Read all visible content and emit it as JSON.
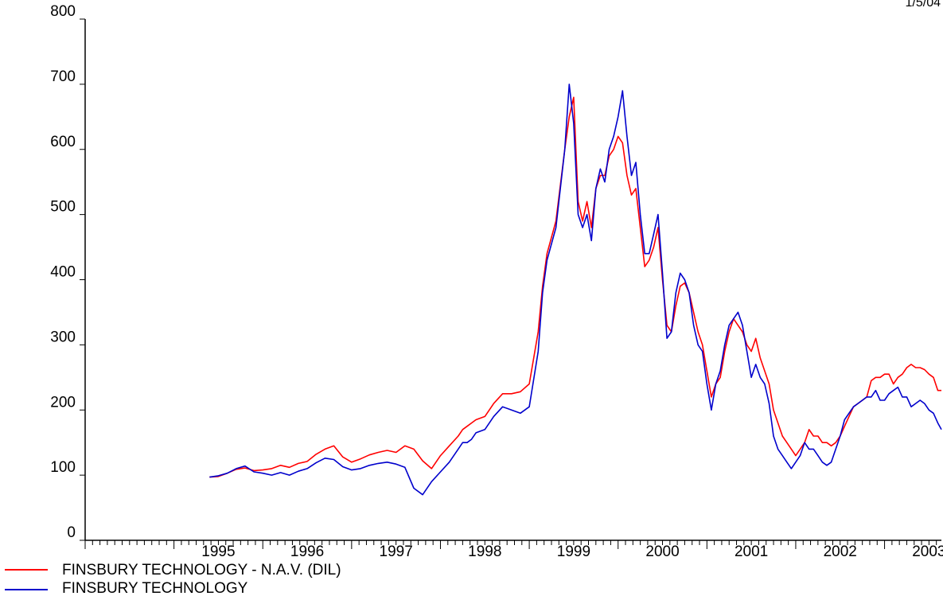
{
  "header": {
    "date_label": "1/5/04"
  },
  "chart_data": {
    "type": "line",
    "y_ticks": [
      "0",
      "100",
      "200",
      "300",
      "400",
      "500",
      "600",
      "700",
      "800"
    ],
    "ylim": [
      0,
      800
    ],
    "x_ticks": [
      "1995",
      "1996",
      "1997",
      "1998",
      "1999",
      "2000",
      "2001",
      "2002",
      "2003"
    ],
    "xlim": [
      1994.0,
      2003.64
    ],
    "grid": false,
    "legend_position": "bottom-left",
    "series": [
      {
        "name": "FINSBURY TECHNOLOGY - N.A.V. (DIL)",
        "color": "#ff0000",
        "x": [
          1995.4,
          1995.5,
          1995.6,
          1995.7,
          1995.8,
          1995.9,
          1996.0,
          1996.1,
          1996.2,
          1996.3,
          1996.4,
          1996.5,
          1996.6,
          1996.7,
          1996.8,
          1996.9,
          1997.0,
          1997.1,
          1997.2,
          1997.3,
          1997.4,
          1997.5,
          1997.6,
          1997.7,
          1997.8,
          1997.9,
          1998.0,
          1998.1,
          1998.2,
          1998.25,
          1998.3,
          1998.35,
          1998.4,
          1998.5,
          1998.6,
          1998.7,
          1998.8,
          1998.9,
          1999.0,
          1999.1,
          1999.15,
          1999.2,
          1999.3,
          1999.4,
          1999.45,
          1999.5,
          1999.55,
          1999.6,
          1999.65,
          1999.7,
          1999.75,
          1999.8,
          1999.85,
          1999.9,
          1999.95,
          2000.0,
          2000.05,
          2000.1,
          2000.15,
          2000.2,
          2000.25,
          2000.3,
          2000.35,
          2000.4,
          2000.45,
          2000.5,
          2000.55,
          2000.6,
          2000.65,
          2000.7,
          2000.75,
          2000.8,
          2000.85,
          2000.9,
          2000.95,
          2001.0,
          2001.05,
          2001.1,
          2001.15,
          2001.2,
          2001.25,
          2001.3,
          2001.35,
          2001.4,
          2001.45,
          2001.5,
          2001.55,
          2001.6,
          2001.65,
          2001.7,
          2001.75,
          2001.8,
          2001.85,
          2001.9,
          2001.95,
          2002.0,
          2002.05,
          2002.1,
          2002.15,
          2002.2,
          2002.25,
          2002.3,
          2002.35,
          2002.4,
          2002.45,
          2002.5,
          2002.55,
          2002.6,
          2002.65,
          2002.7,
          2002.75,
          2002.8,
          2002.85,
          2002.9,
          2002.95,
          2003.0,
          2003.05,
          2003.1,
          2003.15,
          2003.2,
          2003.25,
          2003.3,
          2003.35,
          2003.4,
          2003.45,
          2003.5,
          2003.55,
          2003.6,
          2003.64
        ],
        "y": [
          97,
          98,
          103,
          109,
          111,
          107,
          108,
          110,
          115,
          112,
          118,
          121,
          132,
          140,
          145,
          128,
          120,
          125,
          131,
          135,
          138,
          135,
          145,
          140,
          122,
          110,
          130,
          145,
          160,
          170,
          175,
          180,
          185,
          190,
          210,
          225,
          225,
          228,
          240,
          320,
          390,
          440,
          490,
          600,
          650,
          680,
          520,
          490,
          520,
          480,
          540,
          560,
          560,
          590,
          600,
          620,
          610,
          560,
          530,
          540,
          480,
          420,
          430,
          450,
          480,
          400,
          330,
          320,
          360,
          390,
          395,
          380,
          350,
          320,
          300,
          260,
          220,
          240,
          250,
          290,
          320,
          340,
          330,
          320,
          300,
          290,
          310,
          280,
          260,
          240,
          200,
          180,
          160,
          150,
          140,
          130,
          140,
          150,
          170,
          160,
          160,
          150,
          150,
          145,
          150,
          160,
          175,
          190,
          205,
          210,
          215,
          220,
          245,
          250,
          250,
          255,
          255,
          240,
          250,
          255,
          265,
          270,
          265,
          265,
          262,
          255,
          250,
          230,
          230
        ]
      },
      {
        "name": "FINSBURY TECHNOLOGY",
        "color": "#0000cc",
        "x": [
          1995.4,
          1995.5,
          1995.6,
          1995.7,
          1995.8,
          1995.9,
          1996.0,
          1996.1,
          1996.2,
          1996.3,
          1996.4,
          1996.5,
          1996.6,
          1996.7,
          1996.8,
          1996.9,
          1997.0,
          1997.1,
          1997.2,
          1997.3,
          1997.4,
          1997.5,
          1997.6,
          1997.7,
          1997.8,
          1997.9,
          1998.0,
          1998.1,
          1998.2,
          1998.25,
          1998.3,
          1998.35,
          1998.4,
          1998.5,
          1998.6,
          1998.7,
          1998.8,
          1998.9,
          1999.0,
          1999.1,
          1999.15,
          1999.2,
          1999.3,
          1999.4,
          1999.45,
          1999.5,
          1999.55,
          1999.6,
          1999.65,
          1999.7,
          1999.75,
          1999.8,
          1999.85,
          1999.9,
          1999.95,
          2000.0,
          2000.05,
          2000.1,
          2000.15,
          2000.2,
          2000.25,
          2000.3,
          2000.35,
          2000.4,
          2000.45,
          2000.5,
          2000.55,
          2000.6,
          2000.65,
          2000.7,
          2000.75,
          2000.8,
          2000.85,
          2000.9,
          2000.95,
          2001.0,
          2001.05,
          2001.1,
          2001.15,
          2001.2,
          2001.25,
          2001.3,
          2001.35,
          2001.4,
          2001.45,
          2001.5,
          2001.55,
          2001.6,
          2001.65,
          2001.7,
          2001.75,
          2001.8,
          2001.85,
          2001.9,
          2001.95,
          2002.0,
          2002.05,
          2002.1,
          2002.15,
          2002.2,
          2002.25,
          2002.3,
          2002.35,
          2002.4,
          2002.45,
          2002.5,
          2002.55,
          2002.6,
          2002.65,
          2002.7,
          2002.75,
          2002.8,
          2002.85,
          2002.9,
          2002.95,
          2003.0,
          2003.05,
          2003.1,
          2003.15,
          2003.2,
          2003.25,
          2003.3,
          2003.35,
          2003.4,
          2003.45,
          2003.5,
          2003.55,
          2003.6,
          2003.64
        ],
        "y": [
          97,
          99,
          103,
          110,
          114,
          105,
          103,
          100,
          104,
          100,
          106,
          110,
          119,
          126,
          124,
          113,
          108,
          110,
          115,
          118,
          120,
          117,
          112,
          80,
          70,
          90,
          105,
          120,
          140,
          150,
          150,
          155,
          165,
          170,
          190,
          205,
          200,
          195,
          205,
          290,
          380,
          430,
          480,
          600,
          700,
          640,
          500,
          480,
          500,
          460,
          540,
          570,
          550,
          600,
          620,
          650,
          690,
          620,
          560,
          580,
          500,
          440,
          440,
          470,
          500,
          410,
          310,
          320,
          380,
          410,
          400,
          380,
          330,
          300,
          290,
          240,
          200,
          240,
          260,
          300,
          330,
          340,
          350,
          330,
          290,
          250,
          270,
          250,
          240,
          210,
          160,
          140,
          130,
          120,
          110,
          120,
          130,
          150,
          140,
          140,
          130,
          120,
          115,
          120,
          140,
          160,
          185,
          195,
          205,
          210,
          215,
          220,
          220,
          230,
          215,
          215,
          225,
          230,
          235,
          220,
          220,
          205,
          210,
          215,
          210,
          200,
          195,
          180,
          170
        ]
      }
    ]
  },
  "legend": {
    "items": [
      {
        "label": "FINSBURY TECHNOLOGY - N.A.V. (DIL)",
        "color": "#ff0000"
      },
      {
        "label": "FINSBURY TECHNOLOGY",
        "color": "#0000cc"
      }
    ]
  }
}
